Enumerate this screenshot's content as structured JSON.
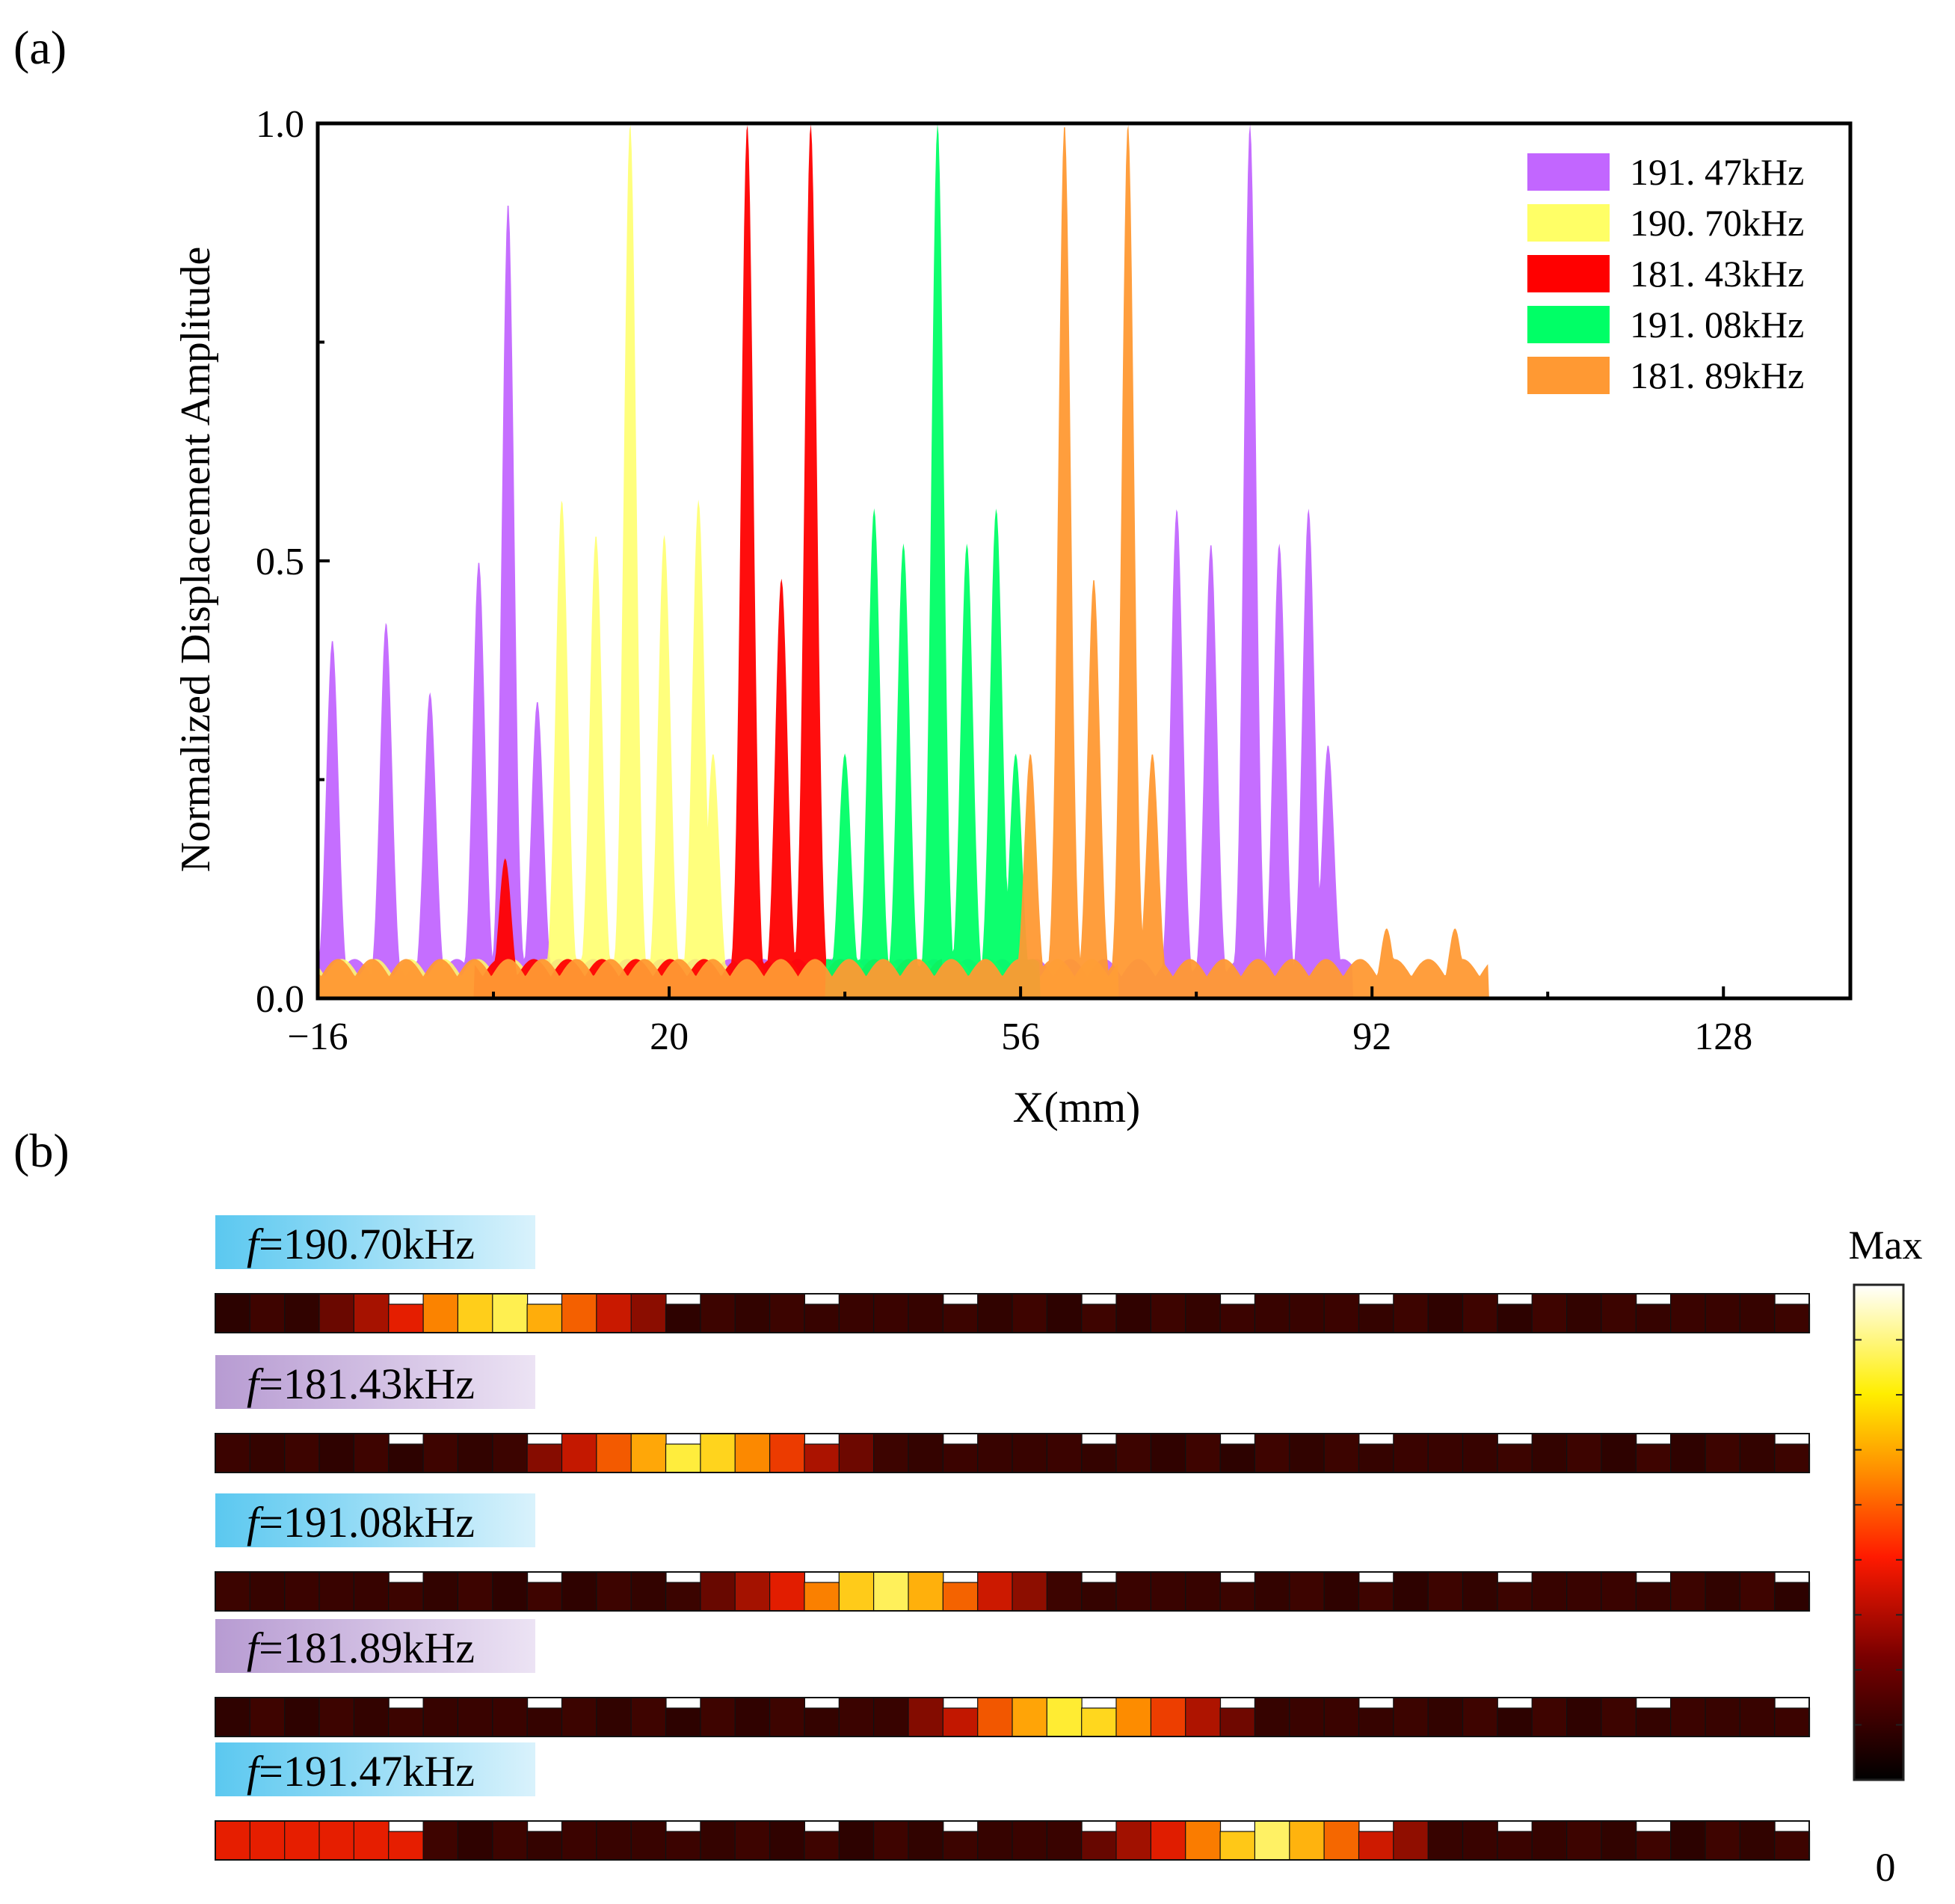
{
  "panel_a_label": "(a)",
  "panel_b_label": "(b)",
  "chart_data": {
    "type": "area",
    "title": "",
    "xlabel": "X(mm)",
    "ylabel": "Normalized Displacement Amplitude",
    "xlim": [
      -16,
      141
    ],
    "ylim": [
      0,
      1.0
    ],
    "xticks": [
      -16,
      20,
      56,
      92,
      128
    ],
    "yticks": [
      0.0,
      0.5,
      1.0
    ],
    "ytick_labels": [
      "0.0",
      "0.5",
      "1.0"
    ],
    "grid": false,
    "legend_position": "top-right",
    "legend": [
      "191. 47kHz",
      "190. 70kHz",
      "181. 43kHz",
      "191. 08kHz",
      "181. 89kHz"
    ],
    "series": [
      {
        "name": "191. 47kHz",
        "color": "#c266ff",
        "peaks": [
          [
            -14.5,
            0.41
          ],
          [
            -9,
            0.43
          ],
          [
            -4.5,
            0.35
          ],
          [
            0.5,
            0.5
          ],
          [
            3.5,
            0.91
          ],
          [
            6.5,
            0.34
          ],
          [
            72,
            0.56
          ],
          [
            75.5,
            0.52
          ],
          [
            79.5,
            1.0
          ],
          [
            82.5,
            0.52
          ],
          [
            85.5,
            0.56
          ],
          [
            87.5,
            0.29
          ]
        ],
        "floor_range": [
          -16,
          90
        ]
      },
      {
        "name": "190. 70kHz",
        "color": "#ffff66",
        "peaks": [
          [
            9,
            0.57
          ],
          [
            12.5,
            0.53
          ],
          [
            16,
            1.0
          ],
          [
            19.5,
            0.53
          ],
          [
            23,
            0.57
          ],
          [
            24.5,
            0.28
          ]
        ],
        "floor_range": [
          -16,
          66
        ]
      },
      {
        "name": "181. 43kHz",
        "color": "#ff0000",
        "peaks": [
          [
            3.2,
            0.16
          ],
          [
            28,
            1.0
          ],
          [
            31.5,
            0.48
          ],
          [
            34.5,
            1.0
          ],
          [
            40.5,
            0.04
          ],
          [
            44,
            0.04
          ]
        ],
        "floor_range": [
          0,
          48
        ]
      },
      {
        "name": "191. 08kHz",
        "color": "#00ff66",
        "peaks": [
          [
            38,
            0.28
          ],
          [
            41,
            0.56
          ],
          [
            44,
            0.52
          ],
          [
            47.5,
            1.0
          ],
          [
            50.5,
            0.52
          ],
          [
            53.5,
            0.56
          ],
          [
            55.5,
            0.28
          ]
        ],
        "floor_range": [
          36,
          58
        ]
      },
      {
        "name": "181. 89kHz",
        "color": "#ff9933",
        "peaks": [
          [
            57,
            0.28
          ],
          [
            60.5,
            1.0
          ],
          [
            63.5,
            0.48
          ],
          [
            67,
            1.0
          ],
          [
            69.5,
            0.28
          ],
          [
            93.5,
            0.08
          ],
          [
            97,
            0.04
          ],
          [
            100.5,
            0.08
          ]
        ],
        "floor_range": [
          -16,
          104
        ]
      }
    ]
  },
  "panel_b": {
    "colorbar": {
      "max_label": "Max",
      "min_label": "0"
    },
    "rows": [
      {
        "label_italic": "f",
        "label_rest": "=190.70kHz",
        "tag_color": "#5bc8f0",
        "hot_center": 0.18
      },
      {
        "label_italic": "f",
        "label_rest": "=181.43kHz",
        "tag_color": "#b79bd2",
        "hot_center": 0.3
      },
      {
        "label_italic": "f",
        "label_rest": "=191.08kHz",
        "tag_color": "#5bc8f0",
        "hot_center": 0.42
      },
      {
        "label_italic": "f",
        "label_rest": "=181.89kHz",
        "tag_color": "#b79bd2",
        "hot_center": 0.54
      },
      {
        "label_italic": "f",
        "label_rest": "=191.47kHz",
        "tag_color": "#5bc8f0",
        "hot_center": 0.66,
        "warm_left": true
      }
    ]
  }
}
